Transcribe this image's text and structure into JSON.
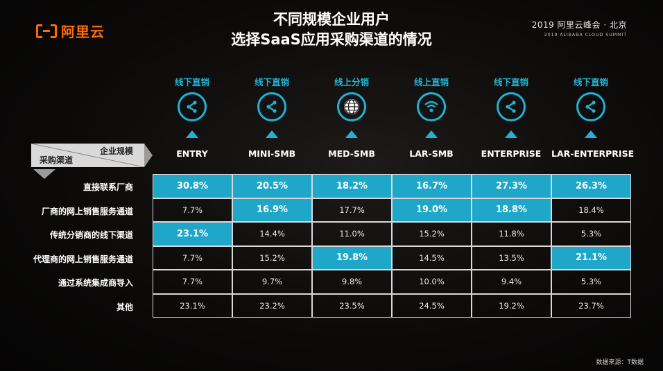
{
  "logo": {
    "text": "阿里云"
  },
  "title": {
    "line1": "不同规模企业用户",
    "line2": "选择SaaS应用采购渠道的情况"
  },
  "event": {
    "line1": "2019 阿里云峰会 · 北京",
    "line2": "2019 ALIBABA CLOUD SUMMIT"
  },
  "corner": {
    "top_label": "企业规模",
    "bottom_label": "采购渠道"
  },
  "source": "数据来源：T数据",
  "colors": {
    "accent": "#1fb2d6",
    "highlight_fill": "#1ea7c9",
    "brand": "#ff6a00"
  },
  "chart_data": {
    "type": "table",
    "columns": [
      {
        "segment": "ENTRY",
        "channel": "线下直销",
        "icon": "share-icon"
      },
      {
        "segment": "MINI-SMB",
        "channel": "线下直销",
        "icon": "share-icon"
      },
      {
        "segment": "MED-SMB",
        "channel": "线上分销",
        "icon": "globe-icon"
      },
      {
        "segment": "LAR-SMB",
        "channel": "线上直销",
        "icon": "wifi-icon"
      },
      {
        "segment": "ENTERPRISE",
        "channel": "线下直销",
        "icon": "share-icon"
      },
      {
        "segment": "LAR-ENTERPRISE",
        "channel": "线下直销",
        "icon": "share-icon"
      }
    ],
    "rows": [
      {
        "label": "直接联系厂商",
        "values": [
          "30.8%",
          "20.5%",
          "18.2%",
          "16.7%",
          "27.3%",
          "26.3%"
        ],
        "highlight": [
          true,
          true,
          true,
          true,
          true,
          true
        ]
      },
      {
        "label": "厂商的网上销售服务通道",
        "values": [
          "7.7%",
          "16.9%",
          "17.7%",
          "19.0%",
          "18.8%",
          "18.4%"
        ],
        "highlight": [
          false,
          true,
          false,
          true,
          true,
          false
        ]
      },
      {
        "label": "传统分销商的线下渠道",
        "values": [
          "23.1%",
          "14.4%",
          "11.0%",
          "15.2%",
          "11.8%",
          "5.3%"
        ],
        "highlight": [
          true,
          false,
          false,
          false,
          false,
          false
        ]
      },
      {
        "label": "代理商的网上销售服务通道",
        "values": [
          "7.7%",
          "15.2%",
          "19.8%",
          "14.5%",
          "13.5%",
          "21.1%"
        ],
        "highlight": [
          false,
          false,
          true,
          false,
          false,
          true
        ]
      },
      {
        "label": "通过系统集成商导入",
        "values": [
          "7.7%",
          "9.7%",
          "9.8%",
          "10.0%",
          "9.4%",
          "5.3%"
        ],
        "highlight": [
          false,
          false,
          false,
          false,
          false,
          false
        ]
      },
      {
        "label": "其他",
        "values": [
          "23.1%",
          "23.2%",
          "23.5%",
          "24.5%",
          "19.2%",
          "23.7%"
        ],
        "highlight": [
          false,
          false,
          false,
          false,
          false,
          false
        ]
      }
    ]
  }
}
